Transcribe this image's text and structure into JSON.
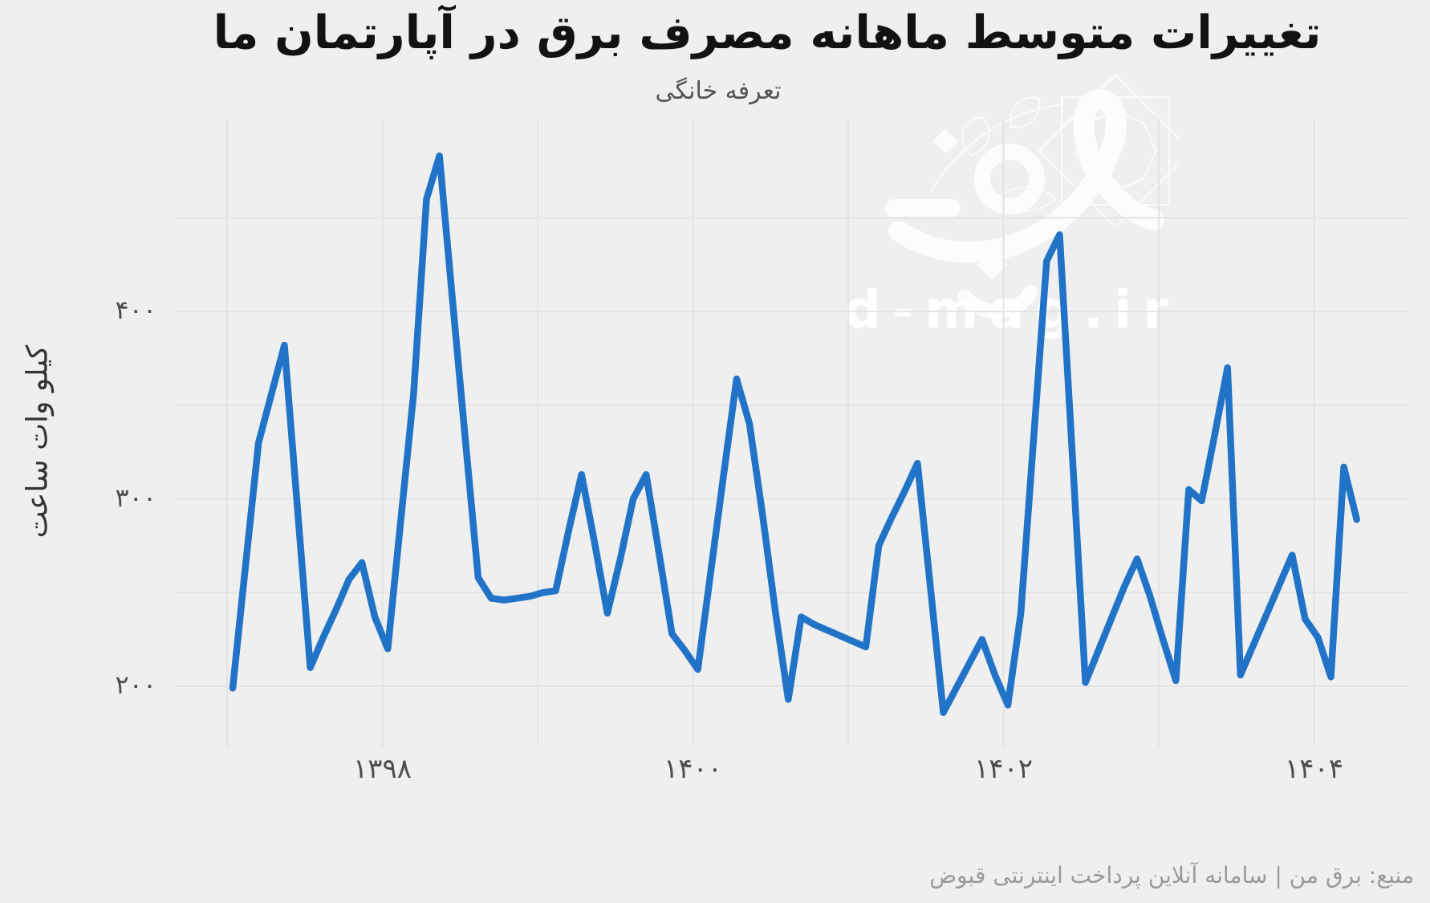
{
  "chart_data": {
    "type": "line",
    "title": "تغییرات متوسط ماهانه مصرف برق در آپارتمان ما",
    "subtitle": "تعرفه خانگی",
    "ylabel": "کیلو وات ساعت",
    "source_note": "منبع: برق من | سامانه آنلاین پرداخت اینترنتی قبوض",
    "watermark": "d-mag.ir",
    "frequency": "monthly",
    "x_start": {
      "jalali_year": 1397,
      "month": 1
    },
    "x_end": {
      "jalali_year": 1404,
      "month": 4
    },
    "x_gridline_years": [
      1397,
      1398,
      1399,
      1400,
      1401,
      1402,
      1403,
      1404
    ],
    "x_ticks": [
      {
        "year": 1398,
        "label": "۱۳۹۸"
      },
      {
        "year": 1400,
        "label": "۱۴۰۰"
      },
      {
        "year": 1402,
        "label": "۱۴۰۲"
      },
      {
        "year": 1404,
        "label": "۱۴۰۴"
      }
    ],
    "y_ticks": [
      {
        "value": 200,
        "label": "۲۰۰"
      },
      {
        "value": 300,
        "label": "۳۰۰"
      },
      {
        "value": 400,
        "label": "۴۰۰"
      }
    ],
    "y_gridlines": [
      200,
      250,
      300,
      350,
      400,
      450
    ],
    "ylim": [
      170,
      500
    ],
    "grid": true,
    "legend": "none",
    "series": [
      {
        "name": "kwh_per_month",
        "values": [
          199,
          265,
          330,
          356,
          382,
          296,
          210,
          226,
          241,
          257,
          266,
          237,
          220,
          288,
          356,
          460,
          483,
          407,
          332,
          258,
          247,
          246,
          247,
          248,
          250,
          251,
          283,
          313,
          277,
          239,
          268,
          300,
          313,
          271,
          228,
          219,
          209,
          261,
          313,
          364,
          340,
          292,
          240,
          193,
          237,
          233,
          230,
          227,
          224,
          221,
          275,
          290,
          304,
          319,
          253,
          186,
          199,
          212,
          225,
          206,
          190,
          239,
          333,
          427,
          441,
          322,
          202,
          219,
          236,
          253,
          268,
          248,
          225,
          203,
          305,
          299,
          334,
          370,
          206,
          222,
          238,
          254,
          270,
          236,
          226,
          205,
          317,
          289
        ]
      }
    ],
    "colors": {
      "line": "#2173c7",
      "background": "#efefef",
      "gridline": "#e3e3e3",
      "title_text": "#121212",
      "tick_text": "#4d4d4d",
      "footer_text": "#999999",
      "watermark": "#ffffff"
    }
  }
}
